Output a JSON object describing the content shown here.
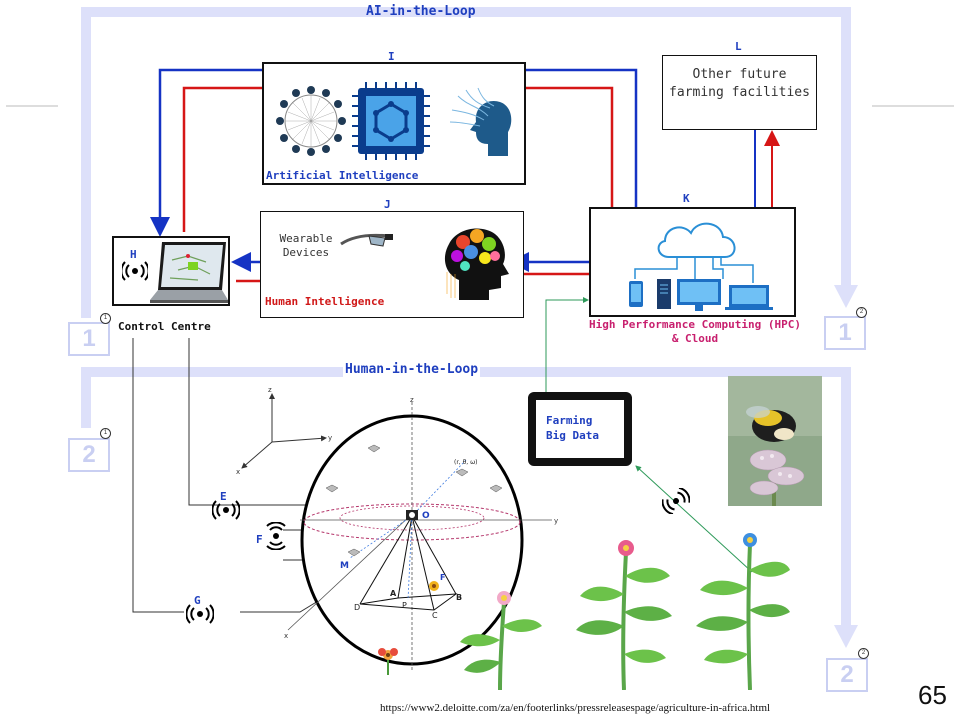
{
  "loops": {
    "ai": "AI-in-the-Loop",
    "human": "Human-in-the-Loop"
  },
  "markers": {
    "one": "1",
    "two": "2"
  },
  "ai_box": {
    "letter": "I",
    "caption": "Artificial Intelligence"
  },
  "other_box": {
    "letter": "L",
    "text": "Other future farming facilities"
  },
  "human_box": {
    "letter": "J",
    "wearable": "Wearable Devices",
    "caption": "Human Intelligence"
  },
  "hpc_box": {
    "letter": "K",
    "caption_line1": "High Performance Computing (HPC)",
    "caption_line2": "& Cloud"
  },
  "control": {
    "letter": "H",
    "caption": "Control Centre"
  },
  "big_data": {
    "line1": "Farming",
    "line2": "Big Data"
  },
  "sensors": {
    "e": "E",
    "f": "F",
    "g": "G"
  },
  "geometry_labels": {
    "o": "O",
    "m": "M",
    "p": "P",
    "a": "A",
    "b": "B",
    "c": "C",
    "d": "D",
    "f1": "F",
    "coords": "(r, θ, ω)",
    "x": "x",
    "y": "y",
    "z": "z"
  },
  "source_url": "https://www2.deloitte.com/za/en/footerlinks/pressreleasespage/agriculture-in-africa.html",
  "page_number": "65",
  "colors": {
    "loop": "#dde0fa",
    "blue_arrow": "#1533c4",
    "red_arrow": "#d61616",
    "green_line": "#2e9a5a"
  }
}
